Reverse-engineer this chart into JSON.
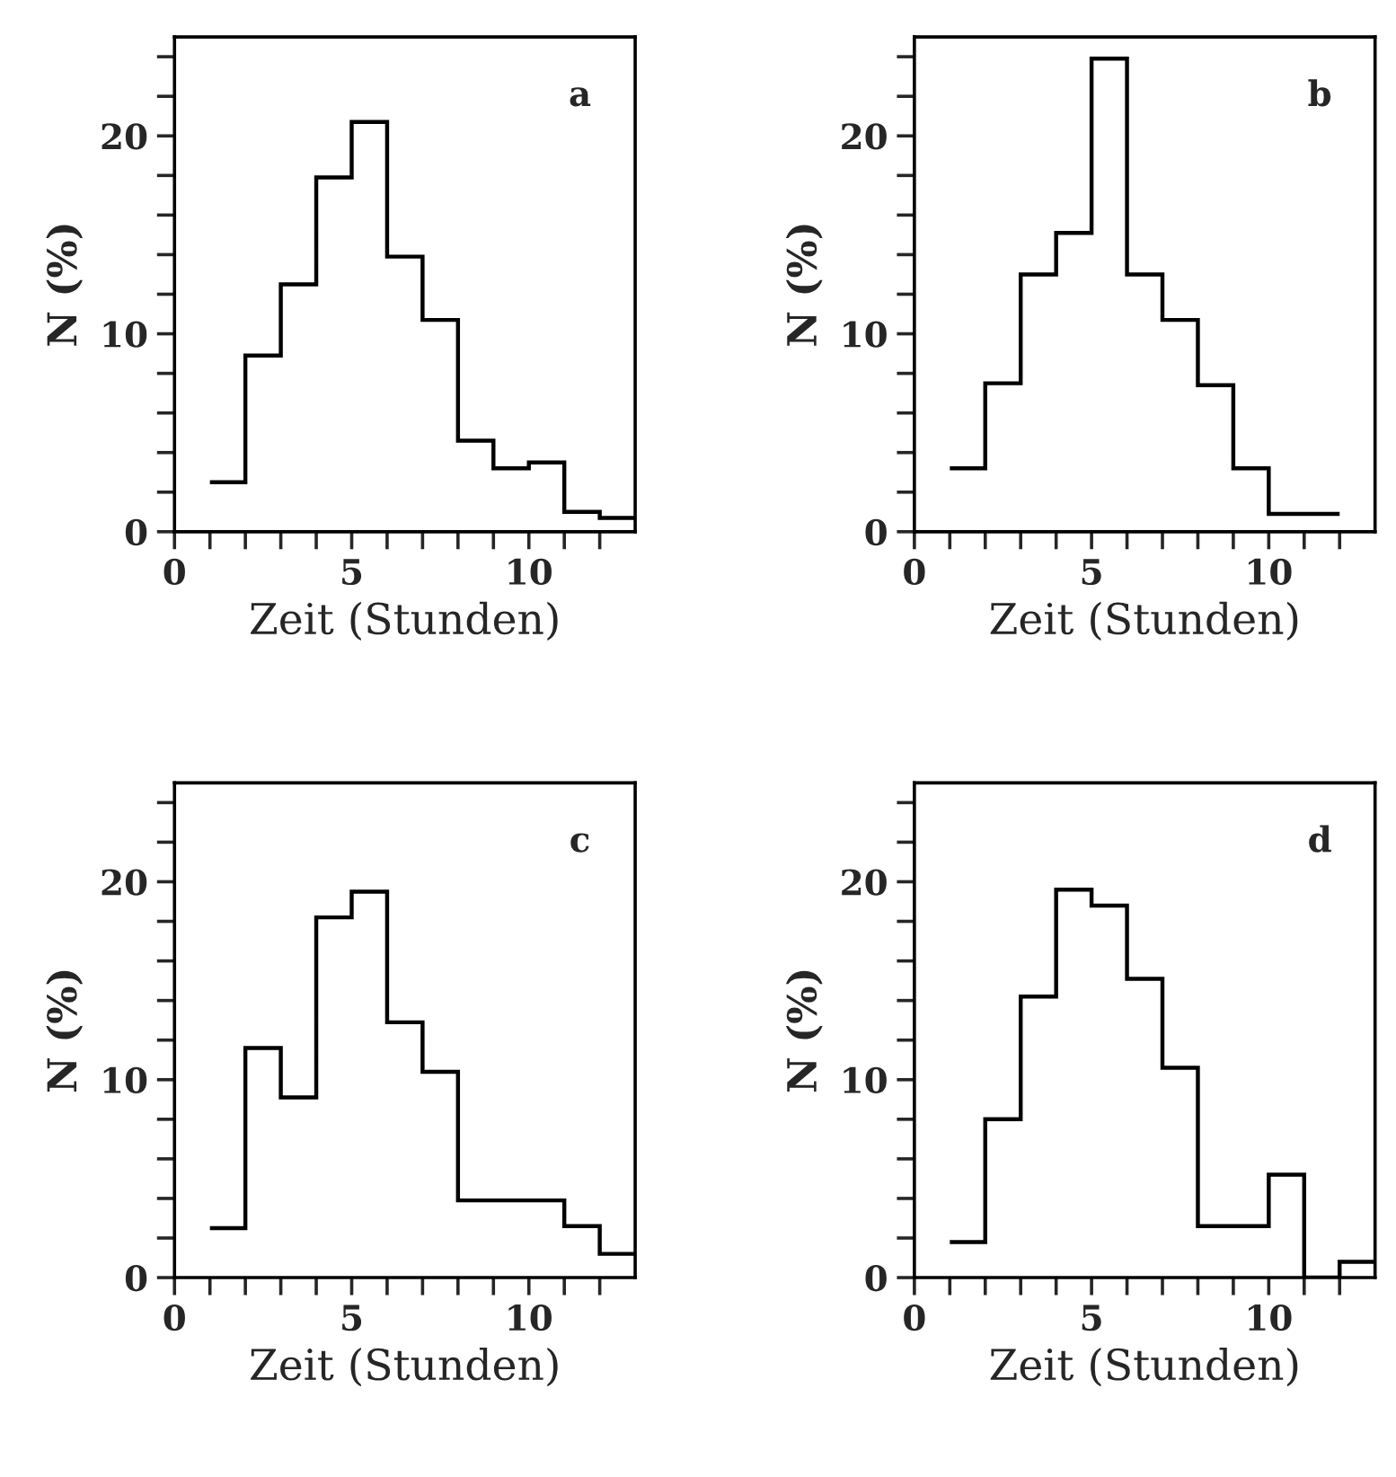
{
  "chart_data": [
    {
      "type": "histogram",
      "bins": [
        1,
        2,
        3,
        4,
        5,
        6,
        7,
        8,
        9,
        10,
        11,
        12,
        13
      ],
      "values": [
        2.5,
        8.9,
        12.5,
        17.9,
        20.7,
        13.9,
        10.7,
        4.6,
        3.2,
        3.5,
        1.0,
        0.7
      ],
      "color": "#000000",
      "xlabel": "Zeit (Stunden)",
      "ylabel": "N (%)",
      "annotations": [
        "a"
      ],
      "xlim": [
        0,
        13
      ],
      "ylim": [
        0,
        25
      ],
      "xticks": [
        0,
        {
          "value": 1,
          "label": null
        },
        {
          "value": 2,
          "label": null
        },
        {
          "value": 3,
          "label": null
        },
        {
          "value": 4,
          "label": null
        },
        5,
        {
          "value": 6,
          "label": null
        },
        {
          "value": 7,
          "label": null
        },
        {
          "value": 8,
          "label": null
        },
        {
          "value": 9,
          "label": null
        },
        10,
        {
          "value": 11,
          "label": null
        },
        {
          "value": 12,
          "label": null
        }
      ],
      "yticks": [
        0,
        {
          "value": 2,
          "label": null
        },
        {
          "value": 4,
          "label": null
        },
        {
          "value": 6,
          "label": null
        },
        {
          "value": 8,
          "label": null
        },
        10,
        {
          "value": 12,
          "label": null
        },
        {
          "value": 14,
          "label": null
        },
        {
          "value": 16,
          "label": null
        },
        {
          "value": 18,
          "label": null
        },
        20,
        {
          "value": 22,
          "label": null
        },
        {
          "value": 24,
          "label": null
        }
      ],
      "grid": false
    },
    {
      "type": "histogram",
      "bins": [
        1,
        2,
        3,
        4,
        5,
        6,
        7,
        8,
        9,
        10,
        11,
        12
      ],
      "values": [
        3.2,
        7.5,
        13.0,
        15.1,
        23.9,
        13.0,
        10.7,
        7.4,
        3.2,
        0.9,
        0.9
      ],
      "color": "#000000",
      "xlabel": "Zeit (Stunden)",
      "ylabel": "N (%)",
      "annotations": [
        "b"
      ],
      "xlim": [
        0,
        13
      ],
      "ylim": [
        0,
        25
      ],
      "xticks": [
        0,
        {
          "value": 1,
          "label": null
        },
        {
          "value": 2,
          "label": null
        },
        {
          "value": 3,
          "label": null
        },
        {
          "value": 4,
          "label": null
        },
        5,
        {
          "value": 6,
          "label": null
        },
        {
          "value": 7,
          "label": null
        },
        {
          "value": 8,
          "label": null
        },
        {
          "value": 9,
          "label": null
        },
        10,
        {
          "value": 11,
          "label": null
        },
        {
          "value": 12,
          "label": null
        }
      ],
      "yticks": [
        0,
        {
          "value": 2,
          "label": null
        },
        {
          "value": 4,
          "label": null
        },
        {
          "value": 6,
          "label": null
        },
        {
          "value": 8,
          "label": null
        },
        10,
        {
          "value": 12,
          "label": null
        },
        {
          "value": 14,
          "label": null
        },
        {
          "value": 16,
          "label": null
        },
        {
          "value": 18,
          "label": null
        },
        20,
        {
          "value": 22,
          "label": null
        },
        {
          "value": 24,
          "label": null
        }
      ],
      "grid": false
    },
    {
      "type": "histogram",
      "bins": [
        1,
        2,
        3,
        4,
        5,
        6,
        7,
        8,
        9,
        10,
        11,
        12,
        13
      ],
      "values": [
        2.5,
        11.6,
        9.1,
        18.2,
        19.5,
        12.9,
        10.4,
        3.9,
        3.9,
        3.9,
        2.6,
        1.2
      ],
      "color": "#000000",
      "xlabel": "Zeit (Stunden)",
      "ylabel": "N (%)",
      "annotations": [
        "c"
      ],
      "xlim": [
        0,
        13
      ],
      "ylim": [
        0,
        25
      ],
      "xticks": [
        0,
        {
          "value": 1,
          "label": null
        },
        {
          "value": 2,
          "label": null
        },
        {
          "value": 3,
          "label": null
        },
        {
          "value": 4,
          "label": null
        },
        5,
        {
          "value": 6,
          "label": null
        },
        {
          "value": 7,
          "label": null
        },
        {
          "value": 8,
          "label": null
        },
        {
          "value": 9,
          "label": null
        },
        10,
        {
          "value": 11,
          "label": null
        },
        {
          "value": 12,
          "label": null
        }
      ],
      "yticks": [
        0,
        {
          "value": 2,
          "label": null
        },
        {
          "value": 4,
          "label": null
        },
        {
          "value": 6,
          "label": null
        },
        {
          "value": 8,
          "label": null
        },
        10,
        {
          "value": 12,
          "label": null
        },
        {
          "value": 14,
          "label": null
        },
        {
          "value": 16,
          "label": null
        },
        {
          "value": 18,
          "label": null
        },
        20,
        {
          "value": 22,
          "label": null
        },
        {
          "value": 24,
          "label": null
        }
      ],
      "grid": false
    },
    {
      "type": "histogram",
      "bins": [
        1,
        2,
        3,
        4,
        5,
        6,
        7,
        8,
        9,
        10,
        11,
        12,
        13
      ],
      "values": [
        1.8,
        8.0,
        14.2,
        19.6,
        18.8,
        15.1,
        10.6,
        2.6,
        2.6,
        5.2,
        0,
        0.8
      ],
      "color": "#000000",
      "xlabel": "Zeit (Stunden)",
      "ylabel": "N (%)",
      "annotations": [
        "d"
      ],
      "xlim": [
        0,
        13
      ],
      "ylim": [
        0,
        25
      ],
      "xticks": [
        0,
        {
          "value": 1,
          "label": null
        },
        {
          "value": 2,
          "label": null
        },
        {
          "value": 3,
          "label": null
        },
        {
          "value": 4,
          "label": null
        },
        5,
        {
          "value": 6,
          "label": null
        },
        {
          "value": 7,
          "label": null
        },
        {
          "value": 8,
          "label": null
        },
        {
          "value": 9,
          "label": null
        },
        10,
        {
          "value": 11,
          "label": null
        },
        {
          "value": 12,
          "label": null
        }
      ],
      "yticks": [
        0,
        {
          "value": 2,
          "label": null
        },
        {
          "value": 4,
          "label": null
        },
        {
          "value": 6,
          "label": null
        },
        {
          "value": 8,
          "label": null
        },
        10,
        {
          "value": 12,
          "label": null
        },
        {
          "value": 14,
          "label": null
        },
        {
          "value": 16,
          "label": null
        },
        {
          "value": 18,
          "label": null
        },
        20,
        {
          "value": 22,
          "label": null
        },
        {
          "value": 24,
          "label": null
        }
      ],
      "grid": false
    }
  ]
}
